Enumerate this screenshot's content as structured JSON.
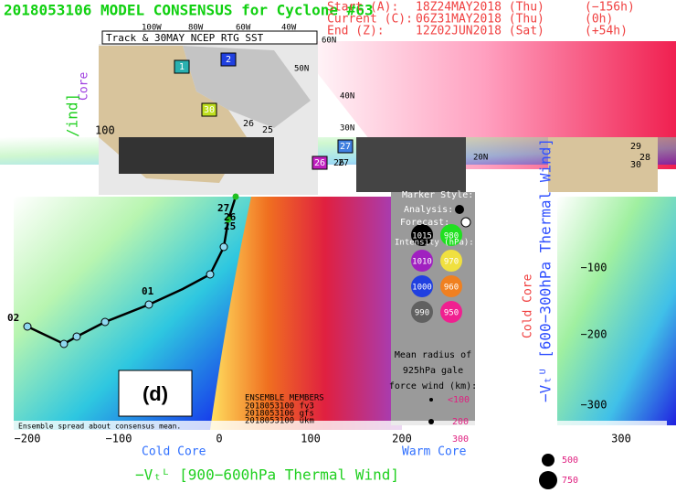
{
  "header": {
    "title": "2018053106 MODEL CONSENSUS for Cyclone #63",
    "start": {
      "label": "Start (A):",
      "time": "18Z24MAY2018 (Thu)",
      "offset": "(−156h)"
    },
    "current": {
      "label": "Current (C):",
      "time": "06Z31MAY2018 (Thu)",
      "offset": "(0h)"
    },
    "end": {
      "label": "End (Z):",
      "time": "12Z02JUN2018 (Sat)",
      "offset": "(+54h)"
    }
  },
  "map": {
    "title": "Track & 30MAY NCEP RTG SST",
    "lons": [
      "100W",
      "80W",
      "60W",
      "40W"
    ],
    "lats": [
      "60N",
      "50N",
      "40N",
      "30N",
      "20N"
    ],
    "boxes": [
      "1",
      "2",
      "30",
      "27",
      "26"
    ],
    "track_labels": [
      "26",
      "25",
      "27",
      "26",
      "29",
      "30",
      "28"
    ]
  },
  "plot": {
    "panel": "(d)",
    "xticks": [
      "−200",
      "−100",
      "0",
      "100",
      "200",
      "300"
    ],
    "cold_core": "Cold Core",
    "warm_core": "Warm Core",
    "xlabel": "−Vₜᴸ [900−600hPa Thermal Wind]",
    "yticks": [
      "−100",
      "−200",
      "−300"
    ],
    "ylabel": "−Vₜᵁ [600−300hPa Thermal Wind]",
    "y_cold_core": "Cold Core",
    "left_tick": "100",
    "left_label": "Core",
    "left_label2": "/ind]",
    "track_labels": [
      "01",
      "02",
      "27",
      "26",
      "25"
    ],
    "spread_note": "Ensemble spread about consensus mean.",
    "ensemble": {
      "title": "ENSEMBLE MEMBERS",
      "members": [
        "2018053100 fv3",
        "2018053106 gfs",
        "2018053100 ukm"
      ]
    }
  },
  "legend": {
    "marker_style": "Marker Style:",
    "analysis": "Analysis:",
    "forecast": "Forecast:",
    "intensity": "Intensity (hPa):",
    "pressures": [
      "1015",
      "980",
      "1010",
      "970",
      "1000",
      "960",
      "990",
      "950"
    ],
    "radius_lines": [
      "Mean radius of",
      "925hPa gale",
      "force wind (km):"
    ],
    "radii": [
      "<100",
      "200",
      "300",
      "500",
      "750"
    ]
  }
}
